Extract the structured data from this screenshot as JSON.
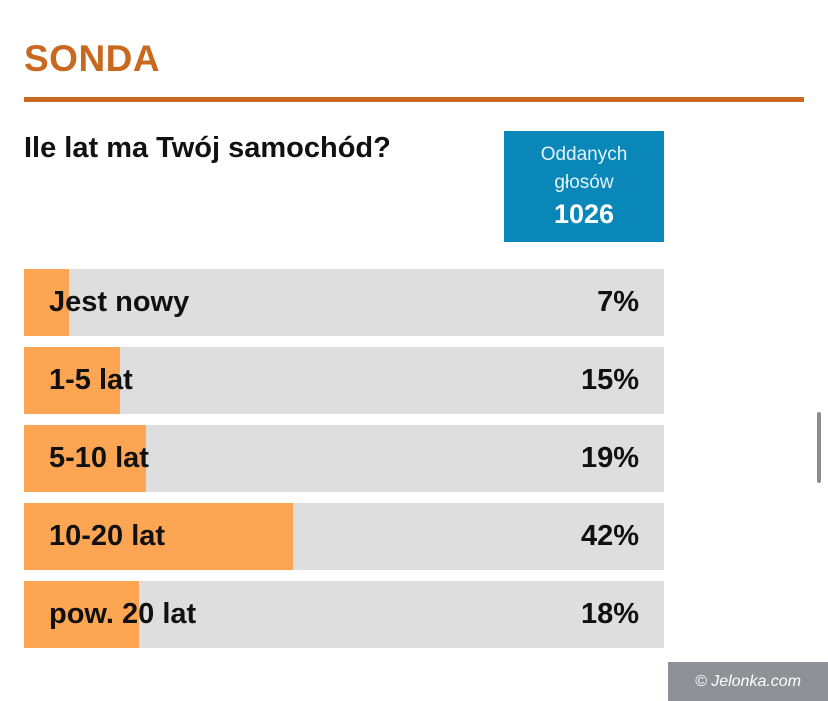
{
  "poll": {
    "section_title": "SONDA",
    "question": "Ile lat ma Twój samochód?",
    "votes": {
      "label": "Oddanych\ngłosów",
      "count": "1026"
    },
    "options": [
      {
        "label": "Jest nowy",
        "percent_text": "7%",
        "percent": 7
      },
      {
        "label": "1-5 lat",
        "percent_text": "15%",
        "percent": 15
      },
      {
        "label": "5-10 lat",
        "percent_text": "19%",
        "percent": 19
      },
      {
        "label": "10-20 lat",
        "percent_text": "42%",
        "percent": 42
      },
      {
        "label": "pow. 20 lat",
        "percent_text": "18%",
        "percent": 18
      }
    ]
  },
  "watermark": "© Jelonka.com",
  "colors": {
    "accent": "#c8691f",
    "votes_box": "#0a87b9",
    "bar_fill": "#fca552",
    "bar_track": "#dedede"
  }
}
